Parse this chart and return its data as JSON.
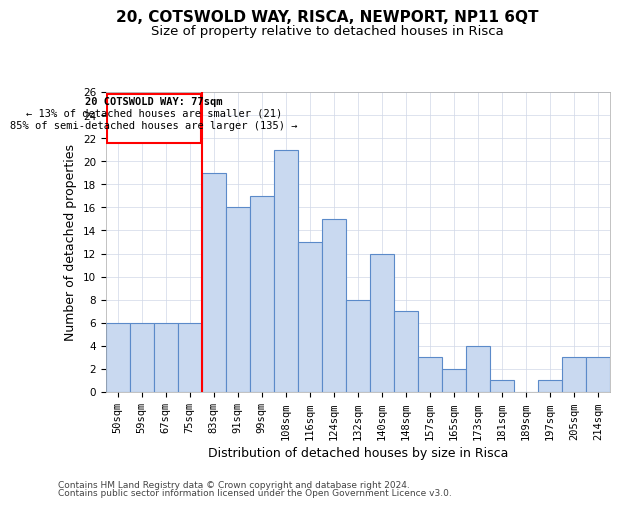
{
  "title": "20, COTSWOLD WAY, RISCA, NEWPORT, NP11 6QT",
  "subtitle": "Size of property relative to detached houses in Risca",
  "xlabel": "Distribution of detached houses by size in Risca",
  "ylabel": "Number of detached properties",
  "categories": [
    "50sqm",
    "59sqm",
    "67sqm",
    "75sqm",
    "83sqm",
    "91sqm",
    "99sqm",
    "108sqm",
    "116sqm",
    "124sqm",
    "132sqm",
    "140sqm",
    "148sqm",
    "157sqm",
    "165sqm",
    "173sqm",
    "181sqm",
    "189sqm",
    "197sqm",
    "205sqm",
    "214sqm"
  ],
  "values": [
    6,
    6,
    6,
    6,
    19,
    16,
    17,
    21,
    13,
    15,
    8,
    12,
    7,
    3,
    2,
    4,
    1,
    0,
    1,
    3,
    3
  ],
  "bar_color": "#c9d9f0",
  "bar_edge_color": "#5b8ac9",
  "red_line_x": 3.5,
  "ylim": [
    0,
    26
  ],
  "yticks": [
    0,
    2,
    4,
    6,
    8,
    10,
    12,
    14,
    16,
    18,
    20,
    22,
    24,
    26
  ],
  "annotation_title": "20 COTSWOLD WAY: 77sqm",
  "annotation_line1": "← 13% of detached houses are smaller (21)",
  "annotation_line2": "85% of semi-detached houses are larger (135) →",
  "footer_line1": "Contains HM Land Registry data © Crown copyright and database right 2024.",
  "footer_line2": "Contains public sector information licensed under the Open Government Licence v3.0.",
  "bg_color": "#ffffff",
  "grid_color": "#d0d8e8",
  "title_fontsize": 11,
  "subtitle_fontsize": 9.5,
  "axis_label_fontsize": 9,
  "tick_fontsize": 7.5,
  "footer_fontsize": 6.5,
  "annot_fontsize": 7.5
}
